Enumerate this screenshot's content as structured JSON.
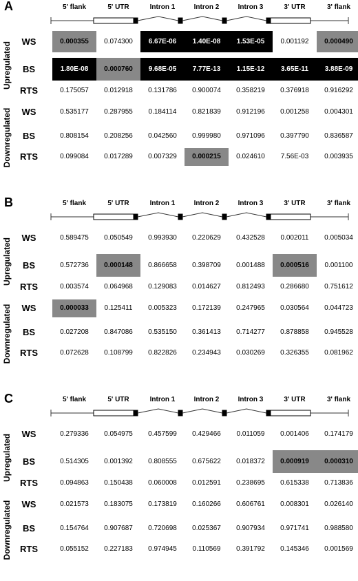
{
  "columns": [
    "5' flank",
    "5' UTR",
    "Intron 1",
    "Intron 2",
    "Intron 3",
    "3' UTR",
    "3' flank"
  ],
  "group_labels": {
    "up": "Upregulated",
    "down": "Downregulated"
  },
  "panels": [
    {
      "label": "A",
      "rows": [
        {
          "label": "WS",
          "values": [
            "0.000355",
            "0.074300",
            "6.67E-06",
            "1.40E-08",
            "1.53E-05",
            "0.001192",
            "0.000490"
          ],
          "styles": [
            "gray",
            "white",
            "black",
            "black",
            "black",
            "white",
            "gray"
          ]
        },
        {
          "label": "BS",
          "values": [
            "1.80E-08",
            "0.000760",
            "9.68E-05",
            "7.77E-13",
            "1.15E-12",
            "3.65E-11",
            "3.88E-09"
          ],
          "styles": [
            "black",
            "gray",
            "black",
            "black",
            "black",
            "black",
            "black"
          ]
        },
        {
          "label": "RTS",
          "values": [
            "0.175057",
            "0.012918",
            "0.131786",
            "0.900074",
            "0.358219",
            "0.376918",
            "0.916292"
          ],
          "styles": []
        },
        {
          "label": "WS",
          "values": [
            "0.535177",
            "0.287955",
            "0.184114",
            "0.821839",
            "0.912196",
            "0.001258",
            "0.004301"
          ],
          "styles": []
        },
        {
          "label": "BS",
          "values": [
            "0.808154",
            "0.208256",
            "0.042560",
            "0.999980",
            "0.971096",
            "0.397790",
            "0.836587"
          ],
          "styles": []
        },
        {
          "label": "RTS",
          "values": [
            "0.099084",
            "0.017289",
            "0.007329",
            "0.000215",
            "0.024610",
            "7.56E-03",
            "0.003935"
          ],
          "styles": [
            "",
            "",
            "",
            "gray",
            "",
            "",
            ""
          ]
        }
      ]
    },
    {
      "label": "B",
      "rows": [
        {
          "label": "WS",
          "values": [
            "0.589475",
            "0.050549",
            "0.993930",
            "0.220629",
            "0.432528",
            "0.002011",
            "0.005034"
          ],
          "styles": []
        },
        {
          "label": "BS",
          "values": [
            "0.572736",
            "0.000148",
            "0.866658",
            "0.398709",
            "0.001488",
            "0.000516",
            "0.001100"
          ],
          "styles": [
            "",
            "gray",
            "",
            "",
            "",
            "gray",
            ""
          ]
        },
        {
          "label": "RTS",
          "values": [
            "0.003574",
            "0.064968",
            "0.129083",
            "0.014627",
            "0.812493",
            "0.286680",
            "0.751612"
          ],
          "styles": []
        },
        {
          "label": "WS",
          "values": [
            "0.000033",
            "0.125411",
            "0.005323",
            "0.172139",
            "0.247965",
            "0.030564",
            "0.044723"
          ],
          "styles": [
            "gray",
            "",
            "",
            "",
            "",
            "",
            ""
          ]
        },
        {
          "label": "BS",
          "values": [
            "0.027208",
            "0.847086",
            "0.535150",
            "0.361413",
            "0.714277",
            "0.878858",
            "0.945528"
          ],
          "styles": []
        },
        {
          "label": "RTS",
          "values": [
            "0.072628",
            "0.108799",
            "0.822826",
            "0.234943",
            "0.030269",
            "0.326355",
            "0.081962"
          ],
          "styles": []
        }
      ]
    },
    {
      "label": "C",
      "rows": [
        {
          "label": "WS",
          "values": [
            "0.279336",
            "0.054975",
            "0.457599",
            "0.429466",
            "0.011059",
            "0.001406",
            "0.174179"
          ],
          "styles": []
        },
        {
          "label": "BS",
          "values": [
            "0.514305",
            "0.001392",
            "0.808555",
            "0.675622",
            "0.018372",
            "0.000919",
            "0.000310"
          ],
          "styles": [
            "",
            "",
            "",
            "",
            "",
            "gray",
            "gray"
          ]
        },
        {
          "label": "RTS",
          "values": [
            "0.094863",
            "0.150438",
            "0.060008",
            "0.012591",
            "0.238695",
            "0.615338",
            "0.713836"
          ],
          "styles": []
        },
        {
          "label": "WS",
          "values": [
            "0.021573",
            "0.183075",
            "0.173819",
            "0.160266",
            "0.606761",
            "0.008301",
            "0.026140"
          ],
          "styles": []
        },
        {
          "label": "BS",
          "values": [
            "0.154764",
            "0.907687",
            "0.720698",
            "0.025367",
            "0.907934",
            "0.971741",
            "0.988580"
          ],
          "styles": []
        },
        {
          "label": "RTS",
          "values": [
            "0.055152",
            "0.227183",
            "0.974945",
            "0.110569",
            "0.391792",
            "0.145346",
            "0.001569"
          ],
          "styles": []
        }
      ]
    }
  ]
}
